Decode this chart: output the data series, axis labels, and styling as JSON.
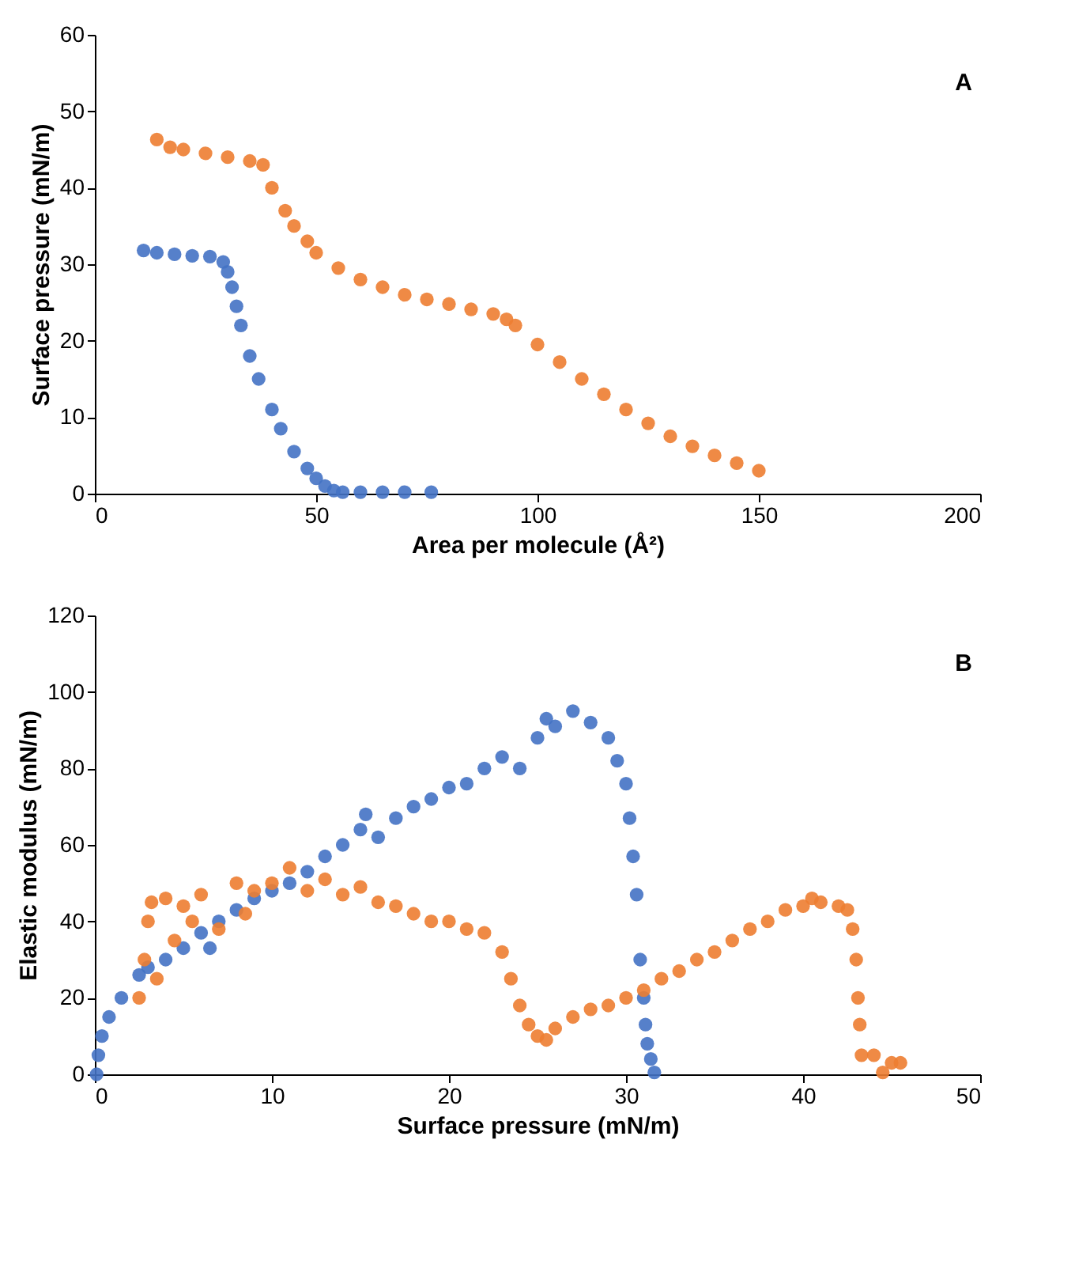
{
  "chart_data": [
    {
      "type": "scatter",
      "xlabel": "Area per molecule (Å²)",
      "ylabel": "Surface pressure (mN/m)",
      "xlim": [
        0,
        200
      ],
      "ylim": [
        0,
        60
      ],
      "xticks": [
        0,
        50,
        100,
        150,
        200
      ],
      "yticks": [
        0,
        10,
        20,
        30,
        40,
        50,
        60
      ],
      "grid": false,
      "marker": "circle",
      "annotations": [
        "A"
      ],
      "series": [
        {
          "color": "#4472c4",
          "x": [
            11,
            14,
            18,
            22,
            26,
            29,
            30,
            31,
            32,
            33,
            35,
            37,
            40,
            42,
            45,
            48,
            50,
            52,
            54,
            56,
            60,
            65,
            70,
            76
          ],
          "values": [
            31.8,
            31.5,
            31.3,
            31.1,
            31,
            30.3,
            29,
            27,
            24.5,
            22,
            18,
            15,
            11,
            8.5,
            5.5,
            3.3,
            2,
            1,
            0.4,
            0.2,
            0.2,
            0.2,
            0.2,
            0.2
          ]
        },
        {
          "color": "#ed7d31",
          "x": [
            14,
            17,
            20,
            25,
            30,
            35,
            38,
            40,
            43,
            45,
            48,
            50,
            55,
            60,
            65,
            70,
            75,
            80,
            85,
            90,
            93,
            95,
            100,
            105,
            110,
            115,
            120,
            125,
            130,
            135,
            140,
            145,
            150
          ],
          "values": [
            46.3,
            45.3,
            45,
            44.5,
            44,
            43.5,
            43,
            40,
            37,
            35,
            33,
            31.5,
            29.5,
            28,
            27,
            26,
            25.4,
            24.8,
            24.1,
            23.5,
            22.8,
            22,
            19.5,
            17.2,
            15,
            13,
            11,
            9.2,
            7.5,
            6.2,
            5,
            4,
            3
          ]
        }
      ]
    },
    {
      "type": "scatter",
      "xlabel": "Surface pressure (mN/m)",
      "ylabel": "Elastic modulus (mN/m)",
      "xlim": [
        0,
        50
      ],
      "ylim": [
        0,
        120
      ],
      "xticks": [
        0,
        10,
        20,
        30,
        40,
        50
      ],
      "yticks": [
        0,
        20,
        40,
        60,
        80,
        100,
        120
      ],
      "grid": false,
      "marker": "circle",
      "annotations": [
        "B"
      ],
      "series": [
        {
          "color": "#4472c4",
          "x": [
            0.1,
            0.2,
            0.4,
            0.8,
            1.5,
            2.5,
            3,
            4,
            5,
            6,
            6.5,
            7,
            8,
            9,
            10,
            11,
            12,
            13,
            14,
            15,
            15.3,
            16,
            17,
            18,
            19,
            20,
            21,
            22,
            23,
            24,
            25,
            25.5,
            26,
            27,
            28,
            29,
            29.5,
            30,
            30.2,
            30.4,
            30.6,
            30.8,
            31,
            31.1,
            31.2,
            31.4,
            31.6
          ],
          "values": [
            0,
            5,
            10,
            15,
            20,
            26,
            28,
            30,
            33,
            37,
            33,
            40,
            43,
            46,
            48,
            50,
            53,
            57,
            60,
            64,
            68,
            62,
            67,
            70,
            72,
            75,
            76,
            80,
            83,
            80,
            88,
            93,
            91,
            95,
            92,
            88,
            82,
            76,
            67,
            57,
            47,
            30,
            20,
            13,
            8,
            4,
            0.5
          ]
        },
        {
          "color": "#ed7d31",
          "x": [
            2.5,
            2.8,
            3,
            3.2,
            3.5,
            4,
            4.5,
            5,
            5.5,
            6,
            7,
            8,
            8.5,
            9,
            10,
            11,
            12,
            13,
            14,
            15,
            16,
            17,
            18,
            19,
            20,
            21,
            22,
            23,
            23.5,
            24,
            24.5,
            25,
            25.5,
            26,
            27,
            28,
            29,
            30,
            31,
            32,
            33,
            34,
            35,
            36,
            37,
            38,
            39,
            40,
            40.5,
            41,
            42,
            42.5,
            42.8,
            43,
            43.1,
            43.2,
            43.3,
            44,
            45,
            45.5,
            44.5
          ],
          "values": [
            20,
            30,
            40,
            45,
            25,
            46,
            35,
            44,
            40,
            47,
            38,
            50,
            42,
            48,
            50,
            54,
            48,
            51,
            47,
            49,
            45,
            44,
            42,
            40,
            40,
            38,
            37,
            32,
            25,
            18,
            13,
            10,
            9,
            12,
            15,
            17,
            18,
            20,
            22,
            25,
            27,
            30,
            32,
            35,
            38,
            40,
            43,
            44,
            46,
            45,
            44,
            43,
            38,
            30,
            20,
            13,
            5,
            5,
            3,
            3,
            0.5
          ]
        }
      ]
    }
  ]
}
